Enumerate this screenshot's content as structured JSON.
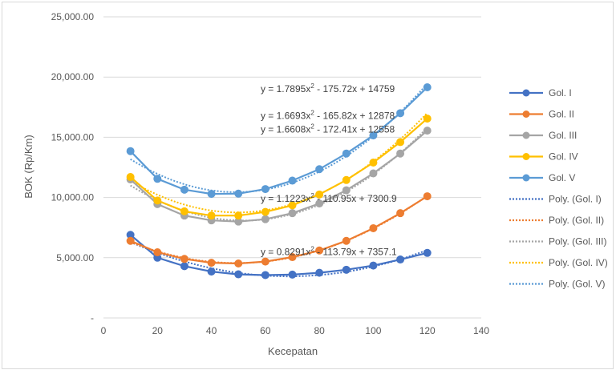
{
  "chart_data": {
    "type": "line",
    "xlabel": "Kecepatan",
    "ylabel": "BOK (Rp/Km)",
    "xlim": [
      0,
      140
    ],
    "ylim": [
      0,
      25000
    ],
    "x_ticks": [
      "0",
      "20",
      "40",
      "60",
      "80",
      "100",
      "120",
      "140"
    ],
    "y_ticks": [
      "-",
      "5,000.00",
      "10,000.00",
      "15,000.00",
      "20,000.00",
      "25,000.00"
    ],
    "grid": "horizontal",
    "legend_position": "right",
    "x": [
      10,
      20,
      30,
      40,
      50,
      60,
      70,
      80,
      90,
      100,
      110,
      120
    ],
    "series": [
      {
        "name": "Gol. I",
        "color": "#4472c4",
        "values": [
          6900,
          5000,
          4300,
          3850,
          3620,
          3560,
          3600,
          3750,
          4000,
          4350,
          4850,
          5400
        ]
      },
      {
        "name": "Gol. II",
        "color": "#ed7d31",
        "values": [
          6400,
          5450,
          4900,
          4580,
          4520,
          4680,
          5050,
          5600,
          6400,
          7450,
          8700,
          10100
        ]
      },
      {
        "name": "Gol. III",
        "color": "#a5a5a5",
        "values": [
          11500,
          9450,
          8500,
          8100,
          8000,
          8200,
          8700,
          9500,
          10600,
          12000,
          13650,
          15550
        ]
      },
      {
        "name": "Gol. IV",
        "color": "#ffc000",
        "values": [
          11700,
          9750,
          8850,
          8500,
          8500,
          8800,
          9350,
          10250,
          11450,
          12900,
          14600,
          16550
        ]
      },
      {
        "name": "Gol. V",
        "color": "#5b9bd5",
        "values": [
          13850,
          11550,
          10650,
          10300,
          10320,
          10700,
          11400,
          12350,
          13650,
          15150,
          17000,
          19150
        ]
      }
    ],
    "trendlines": [
      {
        "name": "Poly. (Gol. I)",
        "color": "#4472c4",
        "coef": [
          0.8291,
          -113.79,
          7357.1
        ]
      },
      {
        "name": "Poly. (Gol. II)",
        "color": "#ed7d31",
        "coef": [
          1.1223,
          -110.95,
          7300.9
        ]
      },
      {
        "name": "Poly. (Gol. III)",
        "color": "#a5a5a5",
        "coef": [
          1.6608,
          -172.41,
          12558
        ]
      },
      {
        "name": "Poly. (Gol. IV)",
        "color": "#ffc000",
        "coef": [
          1.6693,
          -165.82,
          12878
        ]
      },
      {
        "name": "Poly. (Gol. V)",
        "color": "#5b9bd5",
        "coef": [
          1.7895,
          -175.72,
          14759
        ]
      }
    ],
    "annotations": [
      {
        "prefix": "y = 1.7895x",
        "suffix": " - 175.72x + 14759",
        "anchor": [
          85,
          19000
        ]
      },
      {
        "prefix": "y = 1.6693x",
        "suffix": " - 165.82x + 12878",
        "anchor": [
          85,
          16800
        ]
      },
      {
        "prefix": "y = 1.6608x",
        "suffix": " - 172.41x + 12558",
        "anchor": [
          85,
          15650
        ]
      },
      {
        "prefix": "y = 1.1223x",
        "suffix": " - 110.95x + 7300.9",
        "anchor": [
          85,
          9900
        ]
      },
      {
        "prefix": "y = 0.8291x",
        "suffix": " - 113.79x + 7357.1",
        "anchor": [
          85,
          5500
        ]
      }
    ]
  }
}
